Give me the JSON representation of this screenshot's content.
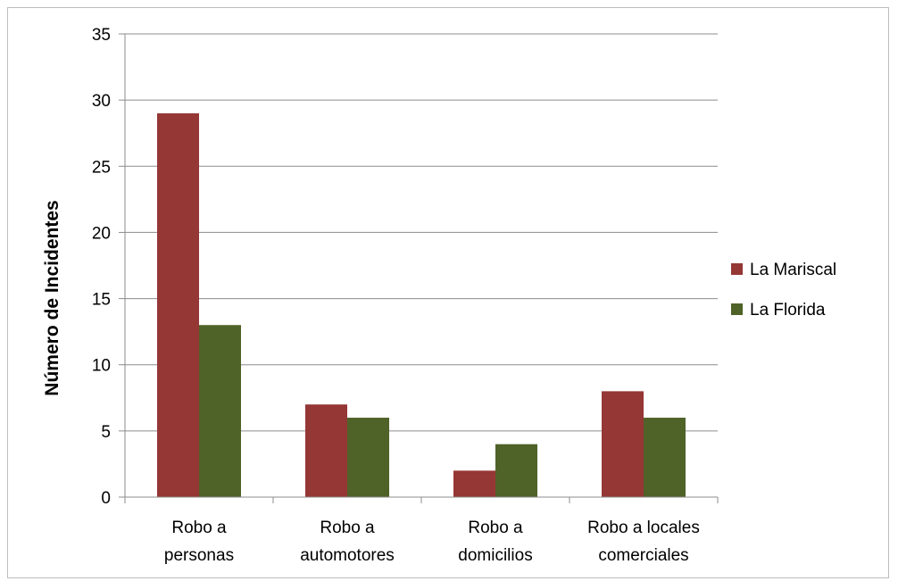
{
  "chart_data": {
    "type": "bar",
    "title": "",
    "xlabel": "",
    "ylabel": "Número de Incidentes",
    "ylim": [
      0,
      35
    ],
    "yticks": [
      0,
      5,
      10,
      15,
      20,
      25,
      30,
      35
    ],
    "grid": true,
    "legend_position": "right",
    "categories": [
      [
        "Robo a",
        "personas"
      ],
      [
        "Robo a",
        "automotores"
      ],
      [
        "Robo a",
        "domicilios"
      ],
      [
        "Robo a locales",
        "comerciales"
      ]
    ],
    "series": [
      {
        "name": "La Mariscal",
        "color": "#953735",
        "values": [
          29,
          7,
          2,
          8
        ]
      },
      {
        "name": "La Florida",
        "color": "#4f6228",
        "values": [
          13,
          6,
          4,
          6
        ]
      }
    ]
  }
}
